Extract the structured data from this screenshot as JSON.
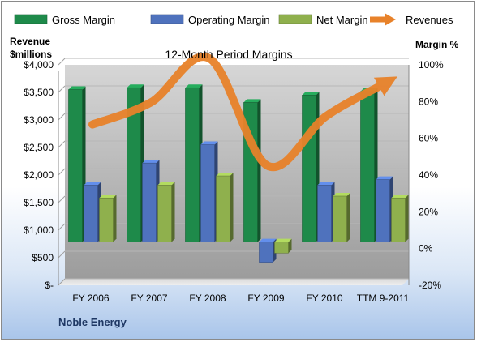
{
  "chart_data": {
    "type": "bar",
    "title": "12-Month Period Margins",
    "categories": [
      "FY 2006",
      "FY 2007",
      "FY 2008",
      "FY 2009",
      "FY 2010",
      "TTM 9-2011"
    ],
    "left_axis": {
      "label_line1": "Revenue",
      "label_line2": "$millions",
      "ylim": [
        0,
        4000
      ],
      "ticks": [
        0,
        500,
        1000,
        1500,
        2000,
        2500,
        3000,
        3500,
        4000
      ],
      "tick_labels": [
        "$-",
        "$500",
        "$1,000",
        "$1,500",
        "$2,000",
        "$2,500",
        "$3,000",
        "$3,500",
        "$4,000"
      ]
    },
    "right_axis": {
      "label": "Margin %",
      "ylim": [
        -20,
        100
      ],
      "ticks": [
        -20,
        0,
        20,
        40,
        60,
        80,
        100
      ],
      "tick_labels": [
        "-20%",
        "0%",
        "20%",
        "40%",
        "60%",
        "80%",
        "100%"
      ]
    },
    "series": [
      {
        "name": "Gross Margin",
        "kind": "bar",
        "axis": "right",
        "color": "#1e8a4a",
        "values": [
          83,
          84,
          84,
          76,
          80,
          82
        ]
      },
      {
        "name": "Operating Margin",
        "kind": "bar",
        "axis": "right",
        "color": "#4f72bd",
        "values": [
          31,
          43,
          53,
          -11,
          31,
          34
        ]
      },
      {
        "name": "Net Margin",
        "kind": "bar",
        "axis": "right",
        "color": "#8fb04d",
        "values": [
          24,
          31,
          36,
          -6,
          25,
          24
        ]
      },
      {
        "name": "Revenues",
        "kind": "line",
        "axis": "left",
        "color": "#e8822a",
        "values": [
          2800,
          3200,
          4000,
          2050,
          2950,
          3540
        ]
      }
    ],
    "grid": true,
    "legend": "top"
  },
  "footer": {
    "company": "Noble Energy"
  }
}
